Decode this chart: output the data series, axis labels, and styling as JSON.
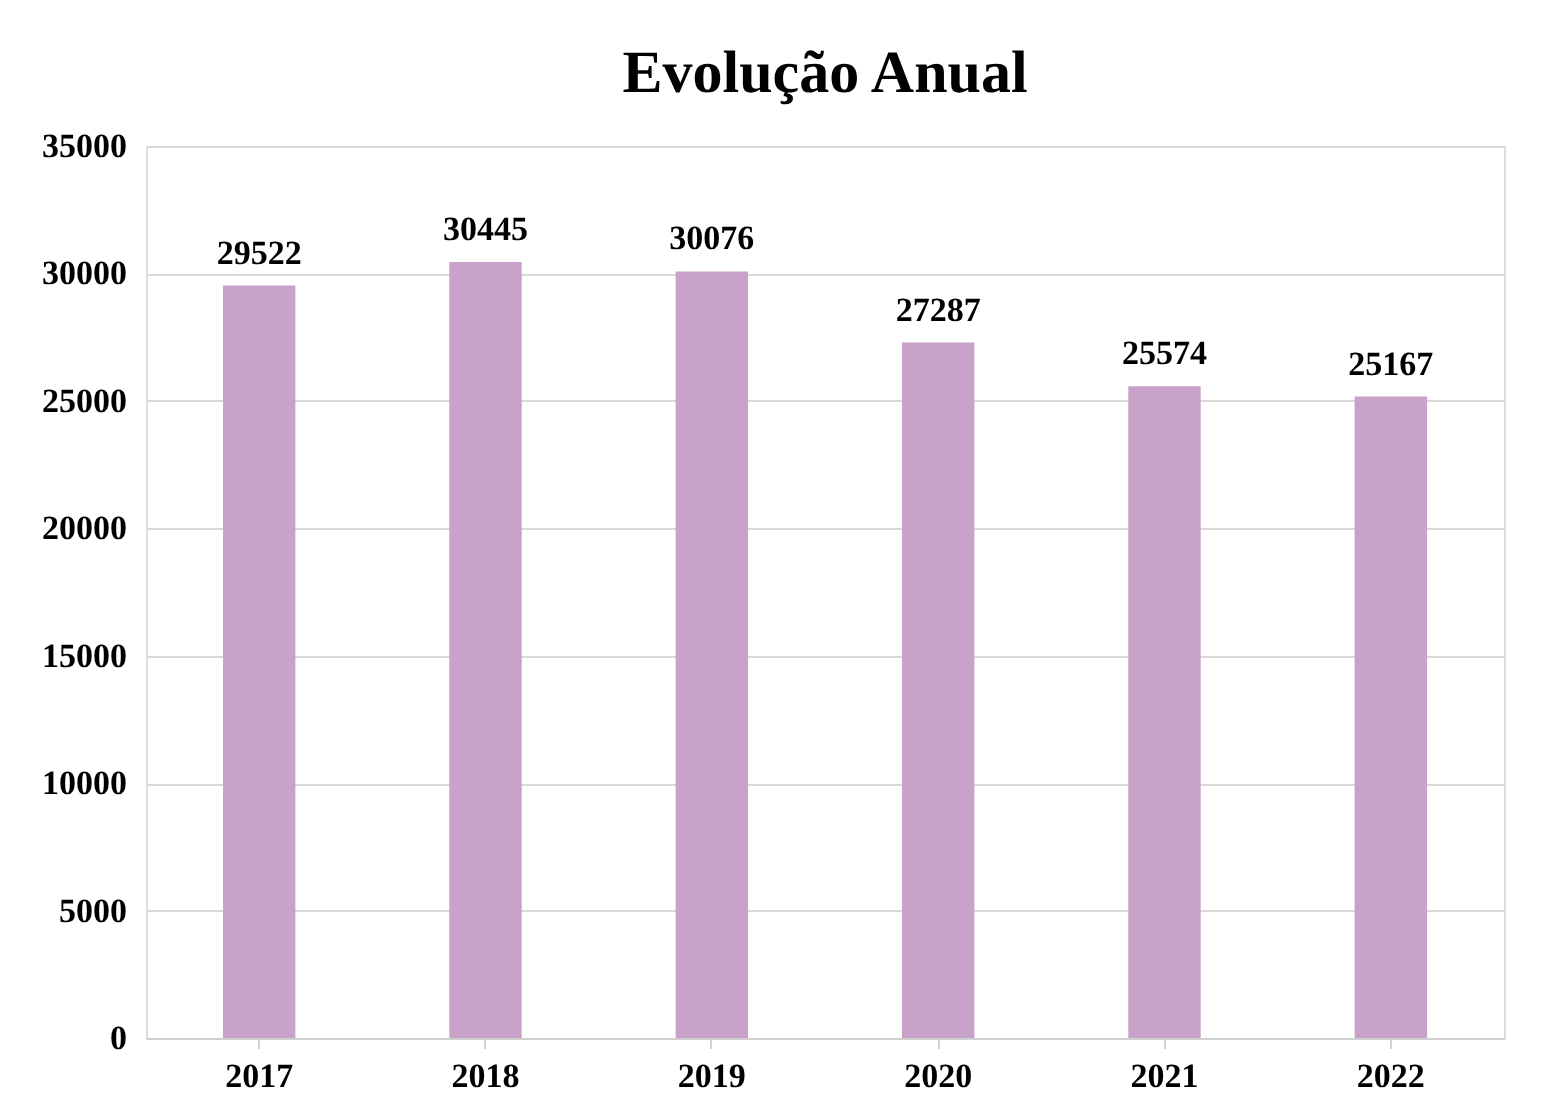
{
  "chart_data": {
    "type": "bar",
    "title": "Evolução Anual",
    "categories": [
      "2017",
      "2018",
      "2019",
      "2020",
      "2021",
      "2022"
    ],
    "values": [
      29522,
      30445,
      30076,
      27287,
      25574,
      25167
    ],
    "color": "#c8a2c8",
    "ylim": [
      0,
      35000
    ],
    "yticks": [
      0,
      5000,
      10000,
      15000,
      20000,
      25000,
      30000,
      35000
    ],
    "grid": "y",
    "data_labels": true
  }
}
